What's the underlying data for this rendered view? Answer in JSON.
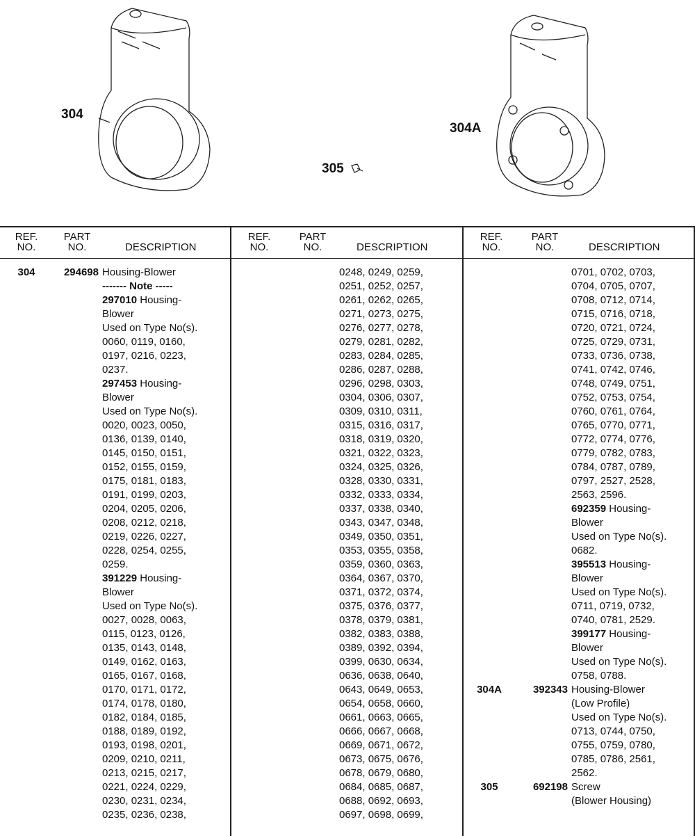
{
  "illustration": {
    "callouts": [
      "304",
      "305",
      "304A"
    ]
  },
  "table": {
    "headers": {
      "ref_1": "REF.",
      "ref_2": "NO.",
      "part_1": "PART",
      "part_2": "NO.",
      "description": "DESCRIPTION"
    },
    "columns": [
      {
        "entries": [
          {
            "ref": "304",
            "part": "294698",
            "lines": [
              {
                "t": "Housing-Blower"
              },
              {
                "b": "------- Note -----"
              },
              {
                "b": "297010",
                "t": " Housing-"
              },
              {
                "t": "Blower"
              },
              {
                "t": "Used on Type No(s)."
              },
              {
                "t": "0060, 0119, 0160,"
              },
              {
                "t": "0197, 0216, 0223,"
              },
              {
                "t": "0237."
              },
              {
                "b": "297453",
                "t": " Housing-"
              },
              {
                "t": "Blower"
              },
              {
                "t": "Used on Type No(s)."
              },
              {
                "t": "0020, 0023, 0050,"
              },
              {
                "t": "0136, 0139, 0140,"
              },
              {
                "t": "0145, 0150, 0151,"
              },
              {
                "t": "0152, 0155, 0159,"
              },
              {
                "t": "0175, 0181, 0183,"
              },
              {
                "t": "0191, 0199, 0203,"
              },
              {
                "t": "0204, 0205, 0206,"
              },
              {
                "t": "0208, 0212, 0218,"
              },
              {
                "t": "0219, 0226, 0227,"
              },
              {
                "t": "0228, 0254, 0255,"
              },
              {
                "t": "0259."
              },
              {
                "b": "391229",
                "t": " Housing-"
              },
              {
                "t": "Blower"
              },
              {
                "t": "Used on Type No(s)."
              },
              {
                "t": "0027, 0028, 0063,"
              },
              {
                "t": "0115, 0123, 0126,"
              },
              {
                "t": "0135, 0143, 0148,"
              },
              {
                "t": "0149, 0162, 0163,"
              },
              {
                "t": "0165, 0167, 0168,"
              },
              {
                "t": "0170, 0171, 0172,"
              },
              {
                "t": "0174, 0178, 0180,"
              },
              {
                "t": "0182, 0184, 0185,"
              },
              {
                "t": "0188, 0189, 0192,"
              },
              {
                "t": "0193, 0198, 0201,"
              },
              {
                "t": "0209, 0210, 0211,"
              },
              {
                "t": "0213, 0215, 0217,"
              },
              {
                "t": "0221, 0224, 0229,"
              },
              {
                "t": "0230, 0231, 0234,"
              },
              {
                "t": "0235, 0236, 0238,"
              }
            ]
          }
        ]
      },
      {
        "entries": [
          {
            "ref": "",
            "part": "",
            "lines": [
              {
                "t": "0248, 0249, 0259,"
              },
              {
                "t": "0251, 0252, 0257,"
              },
              {
                "t": "0261, 0262, 0265,"
              },
              {
                "t": "0271, 0273, 0275,"
              },
              {
                "t": "0276, 0277, 0278,"
              },
              {
                "t": "0279, 0281, 0282,"
              },
              {
                "t": "0283, 0284, 0285,"
              },
              {
                "t": "0286, 0287, 0288,"
              },
              {
                "t": "0296, 0298, 0303,"
              },
              {
                "t": "0304, 0306, 0307,"
              },
              {
                "t": "0309, 0310, 0311,"
              },
              {
                "t": "0315, 0316, 0317,"
              },
              {
                "t": "0318, 0319, 0320,"
              },
              {
                "t": "0321, 0322, 0323,"
              },
              {
                "t": "0324, 0325, 0326,"
              },
              {
                "t": "0328, 0330, 0331,"
              },
              {
                "t": "0332, 0333, 0334,"
              },
              {
                "t": "0337, 0338, 0340,"
              },
              {
                "t": "0343, 0347, 0348,"
              },
              {
                "t": "0349, 0350, 0351,"
              },
              {
                "t": "0353, 0355, 0358,"
              },
              {
                "t": "0359, 0360, 0363,"
              },
              {
                "t": "0364, 0367, 0370,"
              },
              {
                "t": "0371, 0372, 0374,"
              },
              {
                "t": "0375, 0376, 0377,"
              },
              {
                "t": "0378, 0379, 0381,"
              },
              {
                "t": "0382, 0383, 0388,"
              },
              {
                "t": "0389, 0392, 0394,"
              },
              {
                "t": "0399, 0630, 0634,"
              },
              {
                "t": "0636, 0638, 0640,"
              },
              {
                "t": "0643, 0649, 0653,"
              },
              {
                "t": "0654, 0658, 0660,"
              },
              {
                "t": "0661, 0663, 0665,"
              },
              {
                "t": "0666, 0667, 0668,"
              },
              {
                "t": "0669, 0671, 0672,"
              },
              {
                "t": "0673, 0675, 0676,"
              },
              {
                "t": "0678, 0679, 0680,"
              },
              {
                "t": "0684, 0685, 0687,"
              },
              {
                "t": "0688, 0692, 0693,"
              },
              {
                "t": "0697, 0698, 0699,"
              }
            ]
          }
        ]
      },
      {
        "entries": [
          {
            "ref": "",
            "part": "",
            "lines": [
              {
                "t": "0701, 0702, 0703,"
              },
              {
                "t": "0704, 0705, 0707,"
              },
              {
                "t": "0708, 0712, 0714,"
              },
              {
                "t": "0715, 0716, 0718,"
              },
              {
                "t": "0720, 0721, 0724,"
              },
              {
                "t": "0725, 0729, 0731,"
              },
              {
                "t": "0733, 0736, 0738,"
              },
              {
                "t": "0741, 0742, 0746,"
              },
              {
                "t": "0748, 0749, 0751,"
              },
              {
                "t": "0752, 0753, 0754,"
              },
              {
                "t": "0760, 0761, 0764,"
              },
              {
                "t": "0765, 0770, 0771,"
              },
              {
                "t": "0772, 0774, 0776,"
              },
              {
                "t": "0779, 0782, 0783,"
              },
              {
                "t": "0784, 0787, 0789,"
              },
              {
                "t": "0797, 2527, 2528,"
              },
              {
                "t": "2563, 2596."
              },
              {
                "b": "692359",
                "t": " Housing-"
              },
              {
                "t": "Blower"
              },
              {
                "t": "Used on Type No(s)."
              },
              {
                "t": "0682."
              },
              {
                "b": "395513",
                "t": " Housing-"
              },
              {
                "t": "Blower"
              },
              {
                "t": "Used on Type No(s)."
              },
              {
                "t": "0711, 0719, 0732,"
              },
              {
                "t": "0740, 0781, 2529."
              },
              {
                "b": "399177",
                "t": " Housing-"
              },
              {
                "t": "Blower"
              },
              {
                "t": "Used on Type No(s)."
              },
              {
                "t": "0758, 0788."
              }
            ]
          },
          {
            "ref": "304A",
            "part": "392343",
            "lines": [
              {
                "t": "Housing-Blower"
              },
              {
                "t": "(Low Profile)"
              },
              {
                "t": "Used on Type No(s)."
              },
              {
                "t": "0713, 0744, 0750,"
              },
              {
                "t": "0755, 0759, 0780,"
              },
              {
                "t": "0785, 0786, 2561,"
              },
              {
                "t": "2562."
              }
            ]
          },
          {
            "ref": "305",
            "part": "692198",
            "lines": [
              {
                "t": "Screw"
              },
              {
                "t": "(Blower Housing)"
              }
            ]
          }
        ]
      }
    ]
  }
}
